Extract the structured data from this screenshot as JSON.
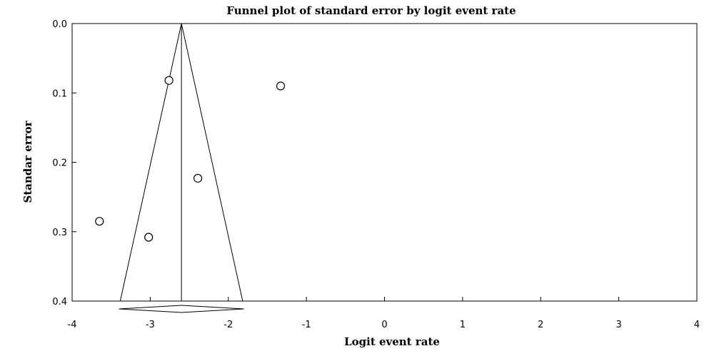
{
  "chart_data": {
    "type": "scatter",
    "title": "Funnel plot of standard error by logit event rate",
    "xlabel": "Logit event rate",
    "ylabel": "Standar error",
    "xlim": [
      -4,
      4
    ],
    "ylim": [
      0.0,
      0.4
    ],
    "y_inverted": true,
    "xticks": [
      -4,
      -3,
      -2,
      -1,
      0,
      1,
      2,
      3,
      4
    ],
    "yticks": [
      "0.0",
      "0.1",
      "0.2",
      "0.3",
      "0.4"
    ],
    "grid": false,
    "points": [
      {
        "x": -2.76,
        "y": 0.082
      },
      {
        "x": -1.33,
        "y": 0.09
      },
      {
        "x": -2.39,
        "y": 0.223
      },
      {
        "x": -3.65,
        "y": 0.285
      },
      {
        "x": -3.02,
        "y": 0.308
      }
    ],
    "summary_effect": -2.6,
    "funnel_half_width_at_max_se": 0.784,
    "diamond": {
      "center": -2.6,
      "lower": -3.4,
      "upper": -1.8
    }
  }
}
